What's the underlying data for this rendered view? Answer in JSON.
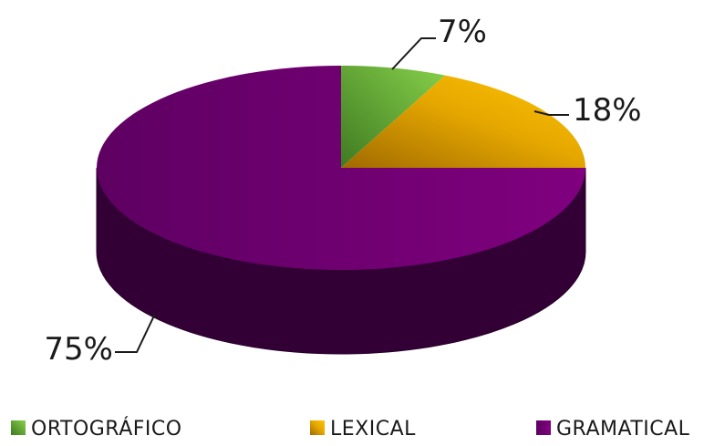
{
  "chart_data": {
    "type": "pie",
    "style": "3d",
    "title": "",
    "categories": [
      "ORTOGRÁFICO",
      "LEXICAL",
      "GRAMATICAL"
    ],
    "values": [
      7,
      18,
      75
    ],
    "labels": [
      "7%",
      "18%",
      "75%"
    ],
    "colors": [
      "#7cc242",
      "#f0b400",
      "#7a0080"
    ],
    "legend_position": "bottom"
  }
}
